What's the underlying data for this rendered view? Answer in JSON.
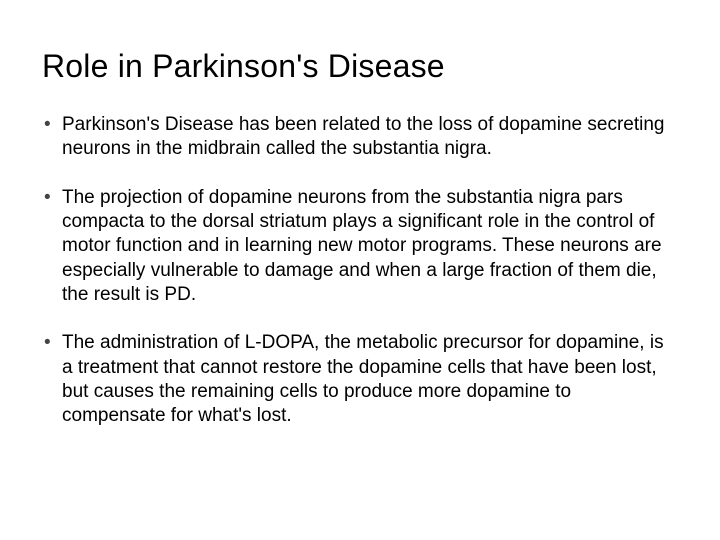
{
  "slide": {
    "title": "Role in Parkinson's Disease",
    "title_fontsize": 32,
    "title_color": "#000000",
    "body_fontsize": 19,
    "body_color": "#000000",
    "bullet_color": "#444444",
    "background_color": "#ffffff",
    "bullets": [
      "Parkinson's Disease has been related to the loss of dopamine secreting neurons in the midbrain called the substantia nigra.",
      "The projection of dopamine neurons from the substantia nigra pars compacta to the dorsal striatum plays a significant role in the control of motor function and in learning new motor programs. These neurons are especially vulnerable to damage and when a large fraction of them die, the result is PD.",
      "The administration of L-DOPA, the metabolic precursor for dopamine, is a treatment that cannot restore the dopamine cells that have been lost, but causes the remaining cells to produce more dopamine to compensate for what's lost."
    ]
  }
}
